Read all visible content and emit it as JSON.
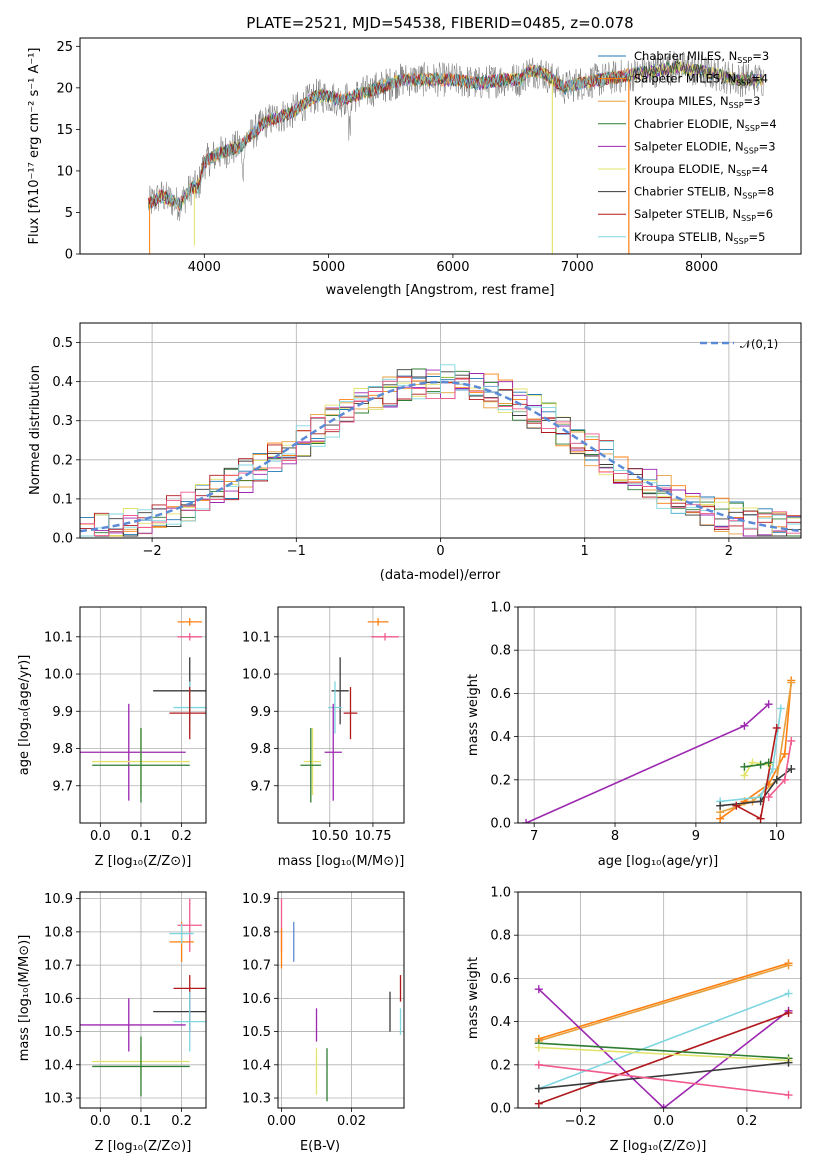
{
  "colors": {
    "chab_miles": "#1f77b4",
    "salp_miles": "#ff7f0e",
    "krou_miles": "#e6a03c",
    "chab_elodie": "#2e7d32",
    "salp_elodie": "#9c27b0",
    "krou_elodie": "#e1e36a",
    "chab_stelib": "#3a3a3a",
    "salp_stelib": "#b2181b",
    "krou_stelib": "#7fd6df",
    "salp_alt": "#f05a8c",
    "blue_ax": "#5b8bd6",
    "green_alt": "#4caf50"
  },
  "chart_data": [
    {
      "id": "spectrum",
      "type": "line",
      "title": "PLATE=2521, MJD=54538, FIBERID=0485, z=0.078",
      "xlabel": "wavelength [Angstrom, rest frame]",
      "ylabel": "Flux [fλ10⁻¹⁷ erg cm⁻² s⁻¹ A⁻¹]",
      "xlim": [
        3000,
        8800
      ],
      "ylim": [
        0,
        26
      ],
      "xticks": [
        "4000",
        "5000",
        "6000",
        "7000",
        "8000"
      ],
      "yticks": [
        "0",
        "5",
        "10",
        "15",
        "20",
        "25"
      ],
      "legend": [
        "Chabrier MILES, N_SSP=3",
        "Salpeter MILES, N_SSP=4",
        "Kroupa MILES, N_SSP=3",
        "Chabrier ELODIE, N_SSP=4",
        "Salpeter ELODIE, N_SSP=3",
        "Kroupa ELODIE, N_SSP=4",
        "Chabrier STELIB, N_SSP=8",
        "Salpeter STELIB, N_SSP=6",
        "Kroupa STELIB, N_SSP=5"
      ],
      "envelope": [
        [
          3550,
          6
        ],
        [
          3650,
          7
        ],
        [
          3800,
          6
        ],
        [
          3900,
          8
        ],
        [
          3950,
          8
        ],
        [
          4000,
          11
        ],
        [
          4100,
          12
        ],
        [
          4200,
          12.5
        ],
        [
          4300,
          13
        ],
        [
          4350,
          14
        ],
        [
          4500,
          16
        ],
        [
          4700,
          17
        ],
        [
          4900,
          19
        ],
        [
          5000,
          19
        ],
        [
          5100,
          18.5
        ],
        [
          5200,
          19
        ],
        [
          5400,
          20
        ],
        [
          5600,
          21
        ],
        [
          5800,
          21
        ],
        [
          6000,
          21
        ],
        [
          6200,
          20.5
        ],
        [
          6400,
          21
        ],
        [
          6550,
          21
        ],
        [
          6600,
          22
        ],
        [
          6700,
          22
        ],
        [
          6800,
          21
        ],
        [
          6900,
          20
        ],
        [
          7000,
          20.5
        ],
        [
          7200,
          21
        ],
        [
          7400,
          21.5
        ],
        [
          7600,
          22
        ],
        [
          7800,
          22.5
        ],
        [
          8000,
          22
        ],
        [
          8300,
          21
        ],
        [
          8500,
          21
        ]
      ]
    },
    {
      "id": "residuals",
      "type": "line",
      "xlabel": "(data-model)/error",
      "ylabel": "Normed distribution",
      "xlim": [
        -2.5,
        2.5
      ],
      "ylim": [
        0,
        0.55
      ],
      "xticks": [
        "−2",
        "−1",
        "0",
        "1",
        "2"
      ],
      "yticks": [
        "0.0",
        "0.1",
        "0.2",
        "0.3",
        "0.4",
        "0.5"
      ],
      "legend": [
        "𝒩(0,1)"
      ],
      "gaussian": {
        "mu": 0,
        "sigma": 1
      }
    },
    {
      "id": "age_Z",
      "type": "scatter",
      "xlabel": "Z [log₁₀(Z/Z⊙)]",
      "ylabel": "age  [log₁₀(age/yr)]",
      "xlim": [
        -0.05,
        0.26
      ],
      "ylim": [
        9.6,
        10.18
      ],
      "xticks": [
        "0.0",
        "0.1",
        "0.2"
      ],
      "yticks": [
        "9.7",
        "9.8",
        "9.9",
        "10.0",
        "10.1"
      ],
      "points": [
        {
          "x": 0.22,
          "y": 10.14,
          "xe": 0.03,
          "ye": 0.01,
          "c": "salp_miles"
        },
        {
          "x": 0.22,
          "y": 10.1,
          "xe": 0.03,
          "ye": 0.01,
          "c": "salp_alt"
        },
        {
          "x": 0.22,
          "y": 9.955,
          "xe": 0.09,
          "ye": 0.09,
          "c": "chab_stelib"
        },
        {
          "x": 0.22,
          "y": 9.91,
          "xe": 0.04,
          "ye": 0.07,
          "c": "krou_stelib"
        },
        {
          "x": 0.22,
          "y": 9.895,
          "xe": 0.05,
          "ye": 0.07,
          "c": "salp_stelib"
        },
        {
          "x": 0.07,
          "y": 9.79,
          "xe": 0.14,
          "ye": 0.13,
          "c": "salp_elodie"
        },
        {
          "x": 0.1,
          "y": 9.765,
          "xe": 0.12,
          "ye": 0.09,
          "c": "krou_elodie"
        },
        {
          "x": 0.1,
          "y": 9.755,
          "xe": 0.12,
          "ye": 0.1,
          "c": "chab_elodie"
        }
      ]
    },
    {
      "id": "age_mass",
      "type": "scatter",
      "xlabel": "mass [log₁₀(M/M⊙)]",
      "xlim": [
        10.2,
        10.93
      ],
      "ylim": [
        9.6,
        10.18
      ],
      "xticks": [
        "10.50",
        "10.75"
      ],
      "yticks": [
        "9.7",
        "9.8",
        "9.9",
        "10.0",
        "10.1"
      ],
      "points": [
        {
          "x": 10.78,
          "y": 10.14,
          "xe": 0.06,
          "ye": 0.01,
          "c": "salp_miles"
        },
        {
          "x": 10.82,
          "y": 10.1,
          "xe": 0.08,
          "ye": 0.01,
          "c": "salp_alt"
        },
        {
          "x": 10.56,
          "y": 9.955,
          "xe": 0.05,
          "ye": 0.09,
          "c": "chab_stelib"
        },
        {
          "x": 10.53,
          "y": 9.91,
          "xe": 0.04,
          "ye": 0.07,
          "c": "krou_stelib"
        },
        {
          "x": 10.62,
          "y": 9.895,
          "xe": 0.04,
          "ye": 0.07,
          "c": "salp_stelib"
        },
        {
          "x": 10.52,
          "y": 9.79,
          "xe": 0.05,
          "ye": 0.13,
          "c": "salp_elodie"
        },
        {
          "x": 10.4,
          "y": 9.765,
          "xe": 0.05,
          "ye": 0.09,
          "c": "krou_elodie"
        },
        {
          "x": 10.39,
          "y": 9.755,
          "xe": 0.06,
          "ye": 0.1,
          "c": "chab_elodie"
        }
      ]
    },
    {
      "id": "massweight_age",
      "type": "line",
      "xlabel": "age  [log₁₀(age/yr)]",
      "ylabel": "mass weight",
      "xlim": [
        6.8,
        10.3
      ],
      "ylim": [
        0,
        1
      ],
      "xticks": [
        "7",
        "8",
        "9",
        "10"
      ],
      "yticks": [
        "0.0",
        "0.2",
        "0.4",
        "0.6",
        "0.8",
        "1.0"
      ],
      "series": [
        {
          "c": "salp_elodie",
          "pts": [
            [
              6.9,
              0.0
            ],
            [
              9.6,
              0.45
            ],
            [
              9.9,
              0.55
            ]
          ]
        },
        {
          "c": "salp_miles",
          "pts": [
            [
              9.3,
              0.02
            ],
            [
              9.6,
              0.1
            ],
            [
              9.9,
              0.18
            ],
            [
              10.1,
              0.32
            ],
            [
              10.18,
              0.66
            ]
          ]
        },
        {
          "c": "krou_miles",
          "pts": [
            [
              9.3,
              0.05
            ],
            [
              9.7,
              0.1
            ],
            [
              10.0,
              0.2
            ],
            [
              10.18,
              0.65
            ]
          ]
        },
        {
          "c": "krou_stelib",
          "pts": [
            [
              9.3,
              0.1
            ],
            [
              9.8,
              0.12
            ],
            [
              9.95,
              0.25
            ],
            [
              10.05,
              0.53
            ]
          ]
        },
        {
          "c": "chab_stelib",
          "pts": [
            [
              9.3,
              0.08
            ],
            [
              9.8,
              0.1
            ],
            [
              10.0,
              0.2
            ],
            [
              10.18,
              0.25
            ]
          ]
        },
        {
          "c": "salp_stelib",
          "pts": [
            [
              9.5,
              0.08
            ],
            [
              9.8,
              0.02
            ],
            [
              10.0,
              0.44
            ]
          ]
        },
        {
          "c": "krou_elodie",
          "pts": [
            [
              9.6,
              0.22
            ],
            [
              9.7,
              0.28
            ],
            [
              9.9,
              0.27
            ]
          ]
        },
        {
          "c": "chab_elodie",
          "pts": [
            [
              9.6,
              0.26
            ],
            [
              9.8,
              0.27
            ],
            [
              9.9,
              0.28
            ]
          ]
        },
        {
          "c": "salp_alt",
          "pts": [
            [
              9.9,
              0.12
            ],
            [
              10.1,
              0.2
            ],
            [
              10.18,
              0.38
            ]
          ]
        }
      ]
    },
    {
      "id": "mass_Z",
      "type": "scatter",
      "xlabel": "Z [log₁₀(Z/Z⊙)]",
      "ylabel": "mass [log₁₀(M/M⊙)]",
      "xlim": [
        -0.05,
        0.26
      ],
      "ylim": [
        10.27,
        10.92
      ],
      "xticks": [
        "0.0",
        "0.1",
        "0.2"
      ],
      "yticks": [
        "10.3",
        "10.4",
        "10.5",
        "10.6",
        "10.7",
        "10.8",
        "10.9"
      ],
      "points": [
        {
          "x": 0.22,
          "y": 10.82,
          "xe": 0.03,
          "ye": 0.08,
          "c": "salp_alt"
        },
        {
          "x": 0.2,
          "y": 10.77,
          "xe": 0.03,
          "ye": 0.06,
          "c": "salp_miles"
        },
        {
          "x": 0.2,
          "y": 10.795,
          "xe": 0.03,
          "ye": 0.03,
          "c": "krou_stelib"
        },
        {
          "x": 0.22,
          "y": 10.63,
          "xe": 0.04,
          "ye": 0.04,
          "c": "salp_stelib"
        },
        {
          "x": 0.22,
          "y": 10.56,
          "xe": 0.09,
          "ye": 0.06,
          "c": "chab_stelib"
        },
        {
          "x": 0.22,
          "y": 10.53,
          "xe": 0.04,
          "ye": 0.09,
          "c": "krou_stelib"
        },
        {
          "x": 0.07,
          "y": 10.52,
          "xe": 0.14,
          "ye": 0.08,
          "c": "salp_elodie"
        },
        {
          "x": 0.1,
          "y": 10.41,
          "xe": 0.12,
          "ye": 0.05,
          "c": "krou_elodie"
        },
        {
          "x": 0.1,
          "y": 10.395,
          "xe": 0.12,
          "ye": 0.09,
          "c": "chab_elodie"
        }
      ]
    },
    {
      "id": "mass_ebv",
      "type": "scatter",
      "xlabel": "E(B-V)",
      "xlim": [
        -0.001,
        0.035
      ],
      "ylim": [
        10.27,
        10.92
      ],
      "xticks": [
        "0.00",
        "0.02"
      ],
      "yticks": [
        "10.3",
        "10.4",
        "10.5",
        "10.6",
        "10.7",
        "10.8",
        "10.9"
      ],
      "points": [
        {
          "x": 0.0,
          "y": 10.82,
          "xe": 0,
          "ye": 0.08,
          "c": "salp_alt"
        },
        {
          "x": 0.0,
          "y": 10.75,
          "xe": 0,
          "ye": 0.06,
          "c": "salp_miles"
        },
        {
          "x": 0.0035,
          "y": 10.77,
          "xe": 0,
          "ye": 0.06,
          "c": "blue_ax"
        },
        {
          "x": 0.034,
          "y": 10.63,
          "xe": 0,
          "ye": 0.04,
          "c": "salp_stelib"
        },
        {
          "x": 0.031,
          "y": 10.56,
          "xe": 0,
          "ye": 0.06,
          "c": "chab_stelib"
        },
        {
          "x": 0.034,
          "y": 10.53,
          "xe": 0,
          "ye": 0.04,
          "c": "krou_stelib"
        },
        {
          "x": 0.01,
          "y": 10.52,
          "xe": 0,
          "ye": 0.05,
          "c": "salp_elodie"
        },
        {
          "x": 0.01,
          "y": 10.38,
          "xe": 0,
          "ye": 0.07,
          "c": "krou_elodie"
        },
        {
          "x": 0.013,
          "y": 10.37,
          "xe": 0,
          "ye": 0.08,
          "c": "chab_elodie"
        }
      ]
    },
    {
      "id": "massweight_Z",
      "type": "line",
      "xlabel": "Z [log₁₀(Z/Z⊙)]",
      "ylabel": "mass weight",
      "xlim": [
        -0.35,
        0.33
      ],
      "ylim": [
        0,
        1
      ],
      "xticks": [
        "−0.2",
        "0.0",
        "0.2"
      ],
      "yticks": [
        "0.0",
        "0.2",
        "0.4",
        "0.6",
        "0.8",
        "1.0"
      ],
      "series": [
        {
          "c": "salp_miles",
          "pts": [
            [
              -0.3,
              0.32
            ],
            [
              0.3,
              0.67
            ]
          ]
        },
        {
          "c": "krou_miles",
          "pts": [
            [
              -0.3,
              0.31
            ],
            [
              0.3,
              0.66
            ]
          ]
        },
        {
          "c": "salp_elodie",
          "pts": [
            [
              -0.3,
              0.55
            ],
            [
              0.0,
              0.0
            ],
            [
              0.3,
              0.45
            ]
          ]
        },
        {
          "c": "krou_stelib",
          "pts": [
            [
              -0.3,
              0.09
            ],
            [
              0.3,
              0.53
            ]
          ]
        },
        {
          "c": "salp_stelib",
          "pts": [
            [
              -0.3,
              0.02
            ],
            [
              0.3,
              0.44
            ]
          ]
        },
        {
          "c": "chab_elodie",
          "pts": [
            [
              -0.3,
              0.3
            ],
            [
              0.3,
              0.23
            ]
          ]
        },
        {
          "c": "krou_elodie",
          "pts": [
            [
              -0.3,
              0.28
            ],
            [
              0.3,
              0.22
            ]
          ]
        },
        {
          "c": "chab_stelib",
          "pts": [
            [
              -0.3,
              0.09
            ],
            [
              0.3,
              0.21
            ]
          ]
        },
        {
          "c": "salp_alt",
          "pts": [
            [
              -0.3,
              0.2
            ],
            [
              0.3,
              0.06
            ]
          ]
        }
      ]
    }
  ]
}
